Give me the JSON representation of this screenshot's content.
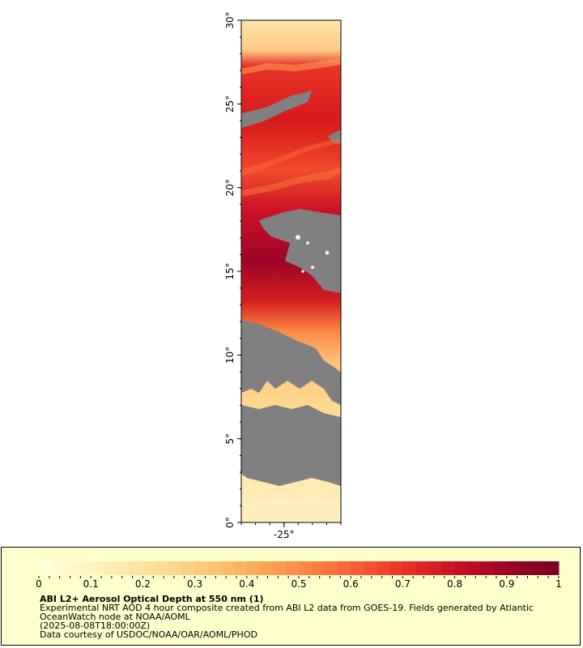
{
  "map": {
    "y_axis": {
      "range": [
        0,
        30
      ],
      "ticks": [
        "0°",
        "5°",
        "10°",
        "15°",
        "20°",
        "25°",
        "30°"
      ]
    },
    "x_axis": {
      "range_approx": [
        -28,
        -21
      ],
      "ticks": [
        "-25°"
      ]
    },
    "nodata_color": "#808080",
    "land_gray_regions": "gray areas = no retrieval (clouds/land)"
  },
  "legend": {
    "colorbar": {
      "min": 0,
      "max": 1,
      "tick_labels": [
        "0",
        "0.1",
        "0.2",
        "0.3",
        "0.4",
        "0.5",
        "0.6",
        "0.7",
        "0.8",
        "0.9",
        "1"
      ],
      "colors": [
        "#ffffd6",
        "#fff2c0",
        "#ffe4a6",
        "#fed38a",
        "#feba6c",
        "#fd9d52",
        "#fc7a43",
        "#f55233",
        "#e32a26",
        "#c40f26",
        "#9d0427",
        "#7e0026"
      ]
    },
    "title": "ABI L2+ Aerosol Optical Depth at 550 nm (1)",
    "line1": "Experimental NRT AOD 4 hour composite created from ABI L2 data from GOES-19. Fields generated by Atlantic",
    "line2": "OceanWatch node at NOAA/AOML",
    "line3": "(2025-08-08T18:00:00Z)",
    "line4": "Data courtesy of USDOC/NOAA/OAR/AOML/PHOD"
  }
}
